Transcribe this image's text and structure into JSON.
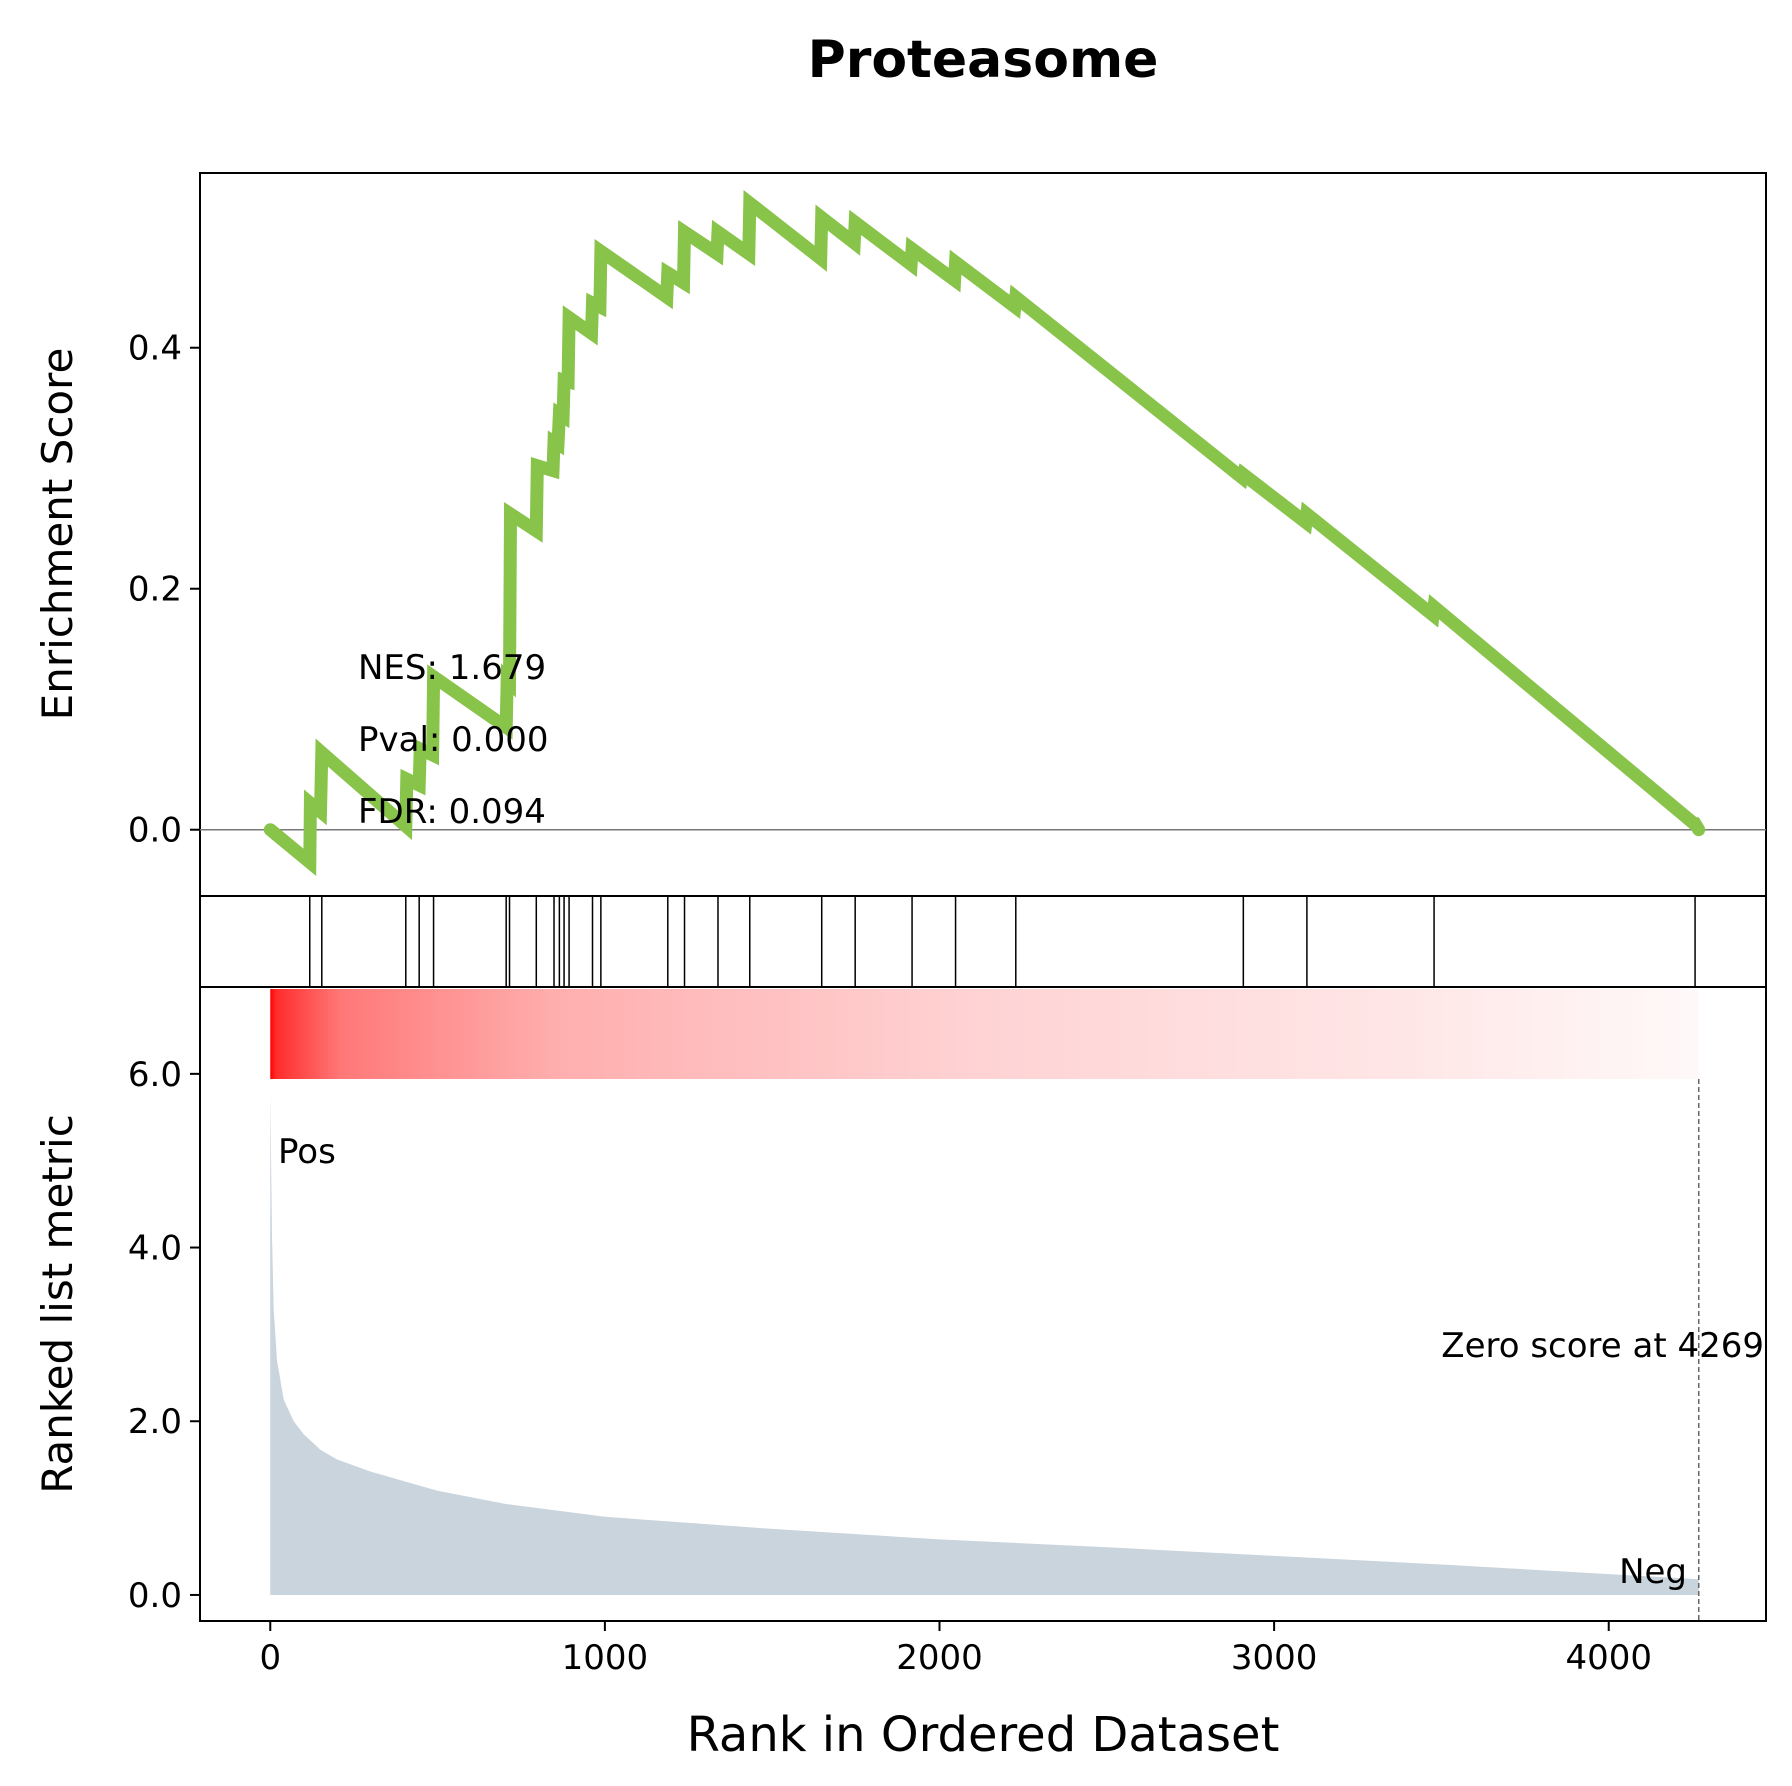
{
  "chart_data": {
    "type": "line",
    "title": "Proteasome",
    "xlabel": "Rank in Ordered Dataset",
    "xlim": [
      -210,
      4470
    ],
    "x_ticks": [
      {
        "value": 0,
        "label": "0"
      },
      {
        "value": 1000,
        "label": "1000"
      },
      {
        "value": 2000,
        "label": "2000"
      },
      {
        "value": 3000,
        "label": "3000"
      },
      {
        "value": 4000,
        "label": "4000"
      }
    ],
    "enrichment": {
      "ylabel": "Enrichment Score",
      "ylim": [
        -0.055,
        0.545
      ],
      "y_ticks": [
        {
          "value": 0.0,
          "label": "0.0"
        },
        {
          "value": 0.2,
          "label": "0.2"
        },
        {
          "value": 0.4,
          "label": "0.4"
        }
      ],
      "line_color": "#88c34a",
      "baseline": 0.0,
      "points": [
        [
          0,
          0.0
        ],
        [
          118,
          -0.027
        ],
        [
          120,
          0.022
        ],
        [
          150,
          0.015
        ],
        [
          154,
          0.064
        ],
        [
          405,
          0.003
        ],
        [
          408,
          0.042
        ],
        [
          445,
          0.037
        ],
        [
          448,
          0.067
        ],
        [
          485,
          0.062
        ],
        [
          488,
          0.127
        ],
        [
          705,
          0.085
        ],
        [
          708,
          0.125
        ],
        [
          715,
          0.123
        ],
        [
          718,
          0.262
        ],
        [
          795,
          0.248
        ],
        [
          798,
          0.302
        ],
        [
          845,
          0.298
        ],
        [
          848,
          0.322
        ],
        [
          860,
          0.32
        ],
        [
          864,
          0.345
        ],
        [
          875,
          0.343
        ],
        [
          878,
          0.373
        ],
        [
          890,
          0.372
        ],
        [
          893,
          0.425
        ],
        [
          960,
          0.412
        ],
        [
          963,
          0.437
        ],
        [
          985,
          0.434
        ],
        [
          988,
          0.48
        ],
        [
          1185,
          0.442
        ],
        [
          1188,
          0.462
        ],
        [
          1235,
          0.454
        ],
        [
          1238,
          0.496
        ],
        [
          1335,
          0.478
        ],
        [
          1338,
          0.496
        ],
        [
          1430,
          0.478
        ],
        [
          1433,
          0.52
        ],
        [
          1645,
          0.474
        ],
        [
          1648,
          0.508
        ],
        [
          1745,
          0.487
        ],
        [
          1748,
          0.504
        ],
        [
          1915,
          0.469
        ],
        [
          1918,
          0.482
        ],
        [
          2045,
          0.456
        ],
        [
          2048,
          0.471
        ],
        [
          2225,
          0.434
        ],
        [
          2228,
          0.442
        ],
        [
          2905,
          0.292
        ],
        [
          2908,
          0.295
        ],
        [
          3095,
          0.255
        ],
        [
          3098,
          0.262
        ],
        [
          3475,
          0.178
        ],
        [
          3478,
          0.185
        ],
        [
          4255,
          0.005
        ],
        [
          4258,
          0.005
        ],
        [
          4269,
          0.0
        ]
      ]
    },
    "hits": [
      118,
      154,
      405,
      445,
      488,
      705,
      715,
      795,
      848,
      864,
      878,
      893,
      963,
      988,
      1188,
      1238,
      1338,
      1433,
      1648,
      1748,
      1918,
      2048,
      2228,
      2908,
      3098,
      3478,
      4258
    ],
    "ranked_metric": {
      "ylabel": "Ranked list metric",
      "ylim": [
        -0.3,
        7.0
      ],
      "y_ticks": [
        {
          "value": 0.0,
          "label": "0.0"
        },
        {
          "value": 2.0,
          "label": "2.0"
        },
        {
          "value": 4.0,
          "label": "4.0"
        },
        {
          "value": 6.0,
          "label": "6.0"
        }
      ],
      "fill_color": "#c9d4dd",
      "curve": [
        [
          0,
          5.8
        ],
        [
          5,
          4.2
        ],
        [
          10,
          3.3
        ],
        [
          20,
          2.7
        ],
        [
          40,
          2.25
        ],
        [
          70,
          2.0
        ],
        [
          100,
          1.85
        ],
        [
          150,
          1.67
        ],
        [
          200,
          1.56
        ],
        [
          300,
          1.42
        ],
        [
          400,
          1.31
        ],
        [
          500,
          1.2
        ],
        [
          700,
          1.05
        ],
        [
          1000,
          0.9
        ],
        [
          1500,
          0.76
        ],
        [
          2000,
          0.64
        ],
        [
          2500,
          0.55
        ],
        [
          3000,
          0.45
        ],
        [
          3500,
          0.35
        ],
        [
          4000,
          0.24
        ],
        [
          4269,
          0.18
        ]
      ],
      "zero_score_label": "Zero score at 4269",
      "zero_score_rank": 4269,
      "pos_label": "Pos",
      "neg_label": "Neg",
      "pos_color": "#ff0000",
      "neg_color": "#0000ff"
    },
    "stats": {
      "nes": "NES: 1.679",
      "pval": "Pval: 0.000",
      "fdr": "FDR: 0.094"
    },
    "heatmap_color": "#ff0000"
  }
}
